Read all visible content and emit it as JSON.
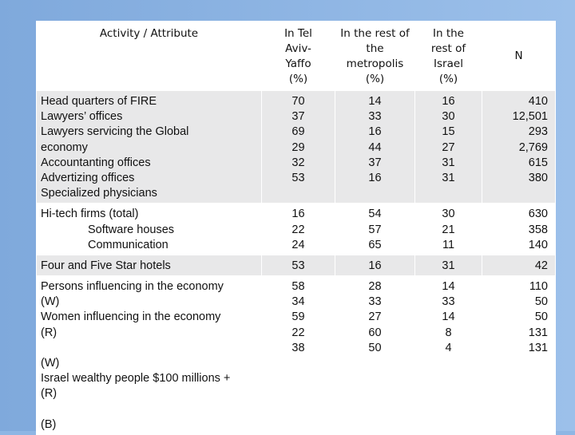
{
  "header": {
    "activity": "Activity / Attribute",
    "tel_aviv": [
      "In Tel",
      "Aviv-",
      "Yaffo",
      "(%)"
    ],
    "metropolis": [
      "In the rest of",
      "the",
      "metropolis",
      "(%)"
    ],
    "israel": [
      "In the",
      "rest of",
      "Israel",
      "(%)"
    ],
    "n": "N"
  },
  "rows": [
    {
      "labels": [
        "Head quarters of FIRE",
        "Lawyers’ offices",
        "Lawyers servicing the Global",
        "economy",
        "Accountanting offices",
        "Advertizing offices",
        "Specialized physicians"
      ],
      "tel_aviv": [
        "70",
        "37",
        "69",
        "29",
        "32",
        "53"
      ],
      "metropolis": [
        "14",
        "33",
        "16",
        "44",
        "37",
        "16"
      ],
      "israel": [
        "16",
        "30",
        "15",
        "27",
        "31",
        "31"
      ],
      "n": [
        "410",
        "12,501",
        "293",
        "2,769",
        "615",
        "380"
      ]
    },
    {
      "labels": [
        "Hi-tech firms (total)",
        "Software houses",
        "Communication"
      ],
      "tel_aviv": [
        "16",
        "22",
        "24"
      ],
      "metropolis": [
        "54",
        "57",
        "65"
      ],
      "israel": [
        "30",
        "21",
        "11"
      ],
      "n": [
        "630",
        "358",
        "140"
      ]
    },
    {
      "labels": [
        "Four and Five Star hotels"
      ],
      "tel_aviv": [
        "53"
      ],
      "metropolis": [
        "16"
      ],
      "israel": [
        "31"
      ],
      "n": [
        "42"
      ]
    },
    {
      "labels": [
        "Persons influencing in the economy",
        "(W)",
        "Women influencing in the economy",
        "(R)",
        "",
        "(W)",
        "Israel wealthy people $100 millions +",
        "(R)",
        "",
        "(B)"
      ],
      "tel_aviv": [
        "58",
        "34",
        "59",
        "22",
        "38"
      ],
      "metropolis": [
        "28",
        "33",
        "27",
        "60",
        "50"
      ],
      "israel": [
        "14",
        "33",
        "14",
        "8",
        "4"
      ],
      "n": [
        "110",
        "50",
        "50",
        "131",
        "131"
      ]
    }
  ]
}
